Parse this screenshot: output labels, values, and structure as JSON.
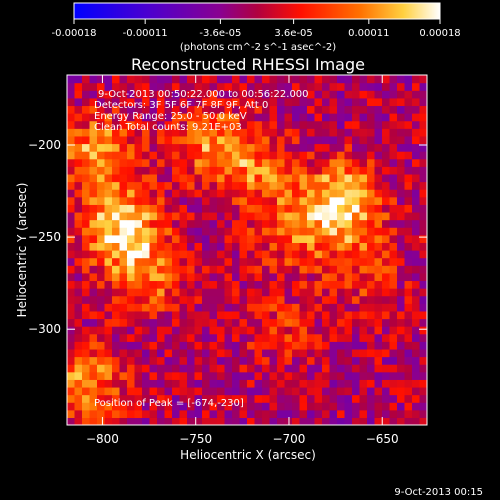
{
  "chart_data": {
    "type": "heatmap",
    "title": "Reconstructed RHESSI Image",
    "annotations": [
      "9-Oct-2013 00:50:22.000 to 00:56:22.000",
      "Detectors: 3F 5F 6F 7F 8F 9F, Att 0",
      "Energy Range: 25.0 - 50.0 keV",
      "Clean    Total counts: 9.21E+03"
    ],
    "peak_label": "Position of Peak = [-674,-230]",
    "footer_date": "9-Oct-2013 00:15",
    "xlabel": "Heliocentric X (arcsec)",
    "ylabel": "Heliocentric Y (arcsec)",
    "xlim": [
      -819,
      -626
    ],
    "ylim": [
      -352,
      -162
    ],
    "xticks": [
      -800,
      -750,
      -700,
      -650
    ],
    "yticks": [
      -200,
      -250,
      -300
    ],
    "colorbar": {
      "ticks": [
        "-0.00018",
        "-0.00011",
        "-3.6e-05",
        "3.6e-05",
        "0.00011",
        "0.00018"
      ],
      "tick_values": [
        -0.00018,
        -0.00011,
        -3.6e-05,
        3.6e-05,
        0.00011,
        0.00018
      ],
      "range": [
        -0.00018,
        0.00018
      ],
      "unit_label": "(photons cm^-2 s^-1 asec^-2)"
    },
    "sources": [
      {
        "x": -672,
        "y": -232,
        "intensity": 0.00018
      },
      {
        "x": -790,
        "y": -245,
        "intensity": 0.00016
      },
      {
        "x": -802,
        "y": -205,
        "intensity": 0.00013
      },
      {
        "x": -740,
        "y": -200,
        "intensity": 0.00011
      },
      {
        "x": -775,
        "y": -272,
        "intensity": 9e-05
      },
      {
        "x": -810,
        "y": -330,
        "intensity": 0.00012
      },
      {
        "x": -700,
        "y": -250,
        "intensity": 7e-05
      },
      {
        "x": -715,
        "y": -215,
        "intensity": 8e-05
      },
      {
        "x": -660,
        "y": -270,
        "intensity": 6e-05
      },
      {
        "x": -705,
        "y": -300,
        "intensity": 5e-05
      }
    ],
    "grid": false
  }
}
